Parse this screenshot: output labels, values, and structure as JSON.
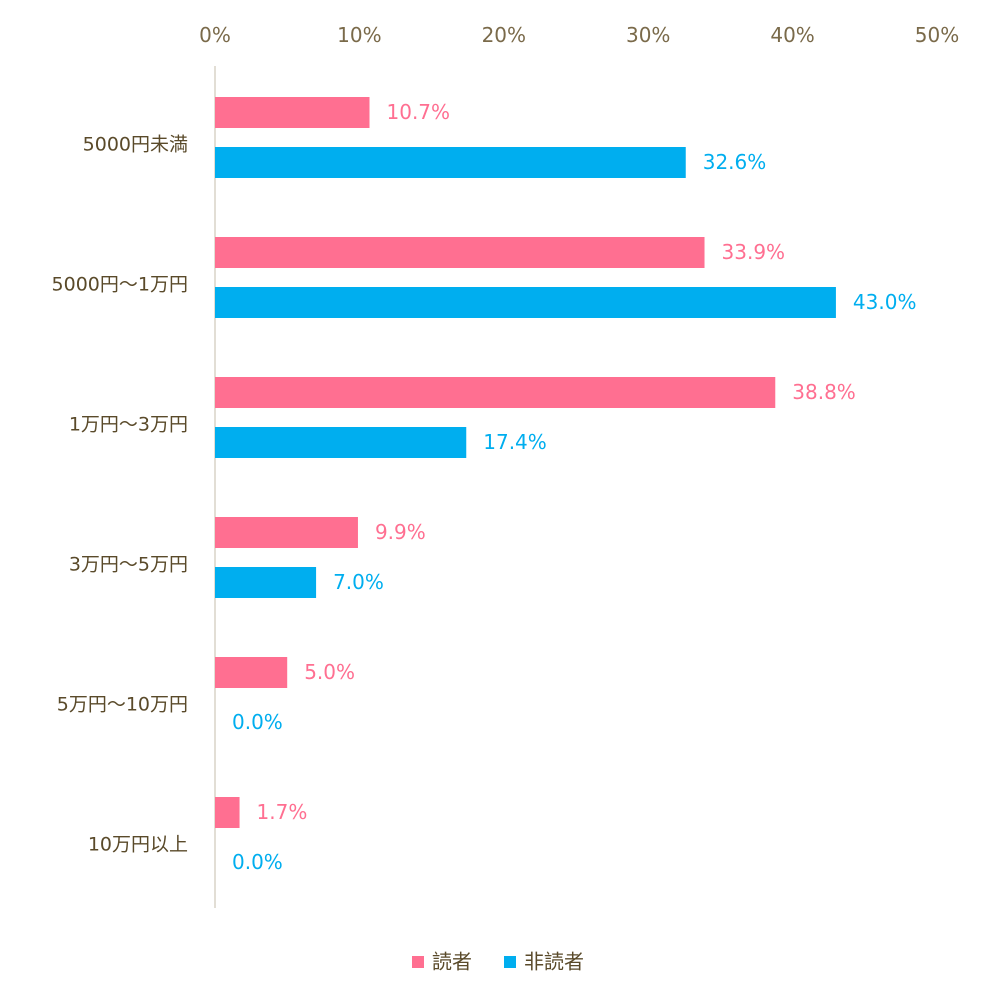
{
  "chart_data": {
    "type": "bar",
    "orientation": "horizontal",
    "categories": [
      "5000円未満",
      "5000円～1万円",
      "1万円～3万円",
      "3万円～5万円",
      "5万円～10万円",
      "10万円以上"
    ],
    "series": [
      {
        "name": "読者",
        "color": "#ff6f91",
        "values": [
          10.7,
          33.9,
          38.8,
          9.9,
          5.0,
          1.7
        ],
        "labels": [
          "10.7%",
          "33.9%",
          "38.8%",
          "9.9%",
          "5.0%",
          "1.7%"
        ]
      },
      {
        "name": "非読者",
        "color": "#00aeef",
        "values": [
          32.6,
          43.0,
          17.4,
          7.0,
          0.0,
          0.0
        ],
        "labels": [
          "32.6%",
          "43.0%",
          "17.4%",
          "7.0%",
          "0.0%",
          "0.0%"
        ]
      }
    ],
    "xlim": [
      0,
      50
    ],
    "x_ticks": [
      "0%",
      "10%",
      "20%",
      "30%",
      "40%",
      "50%"
    ],
    "axis_position": "top",
    "grid": false,
    "legend": "bottom"
  }
}
